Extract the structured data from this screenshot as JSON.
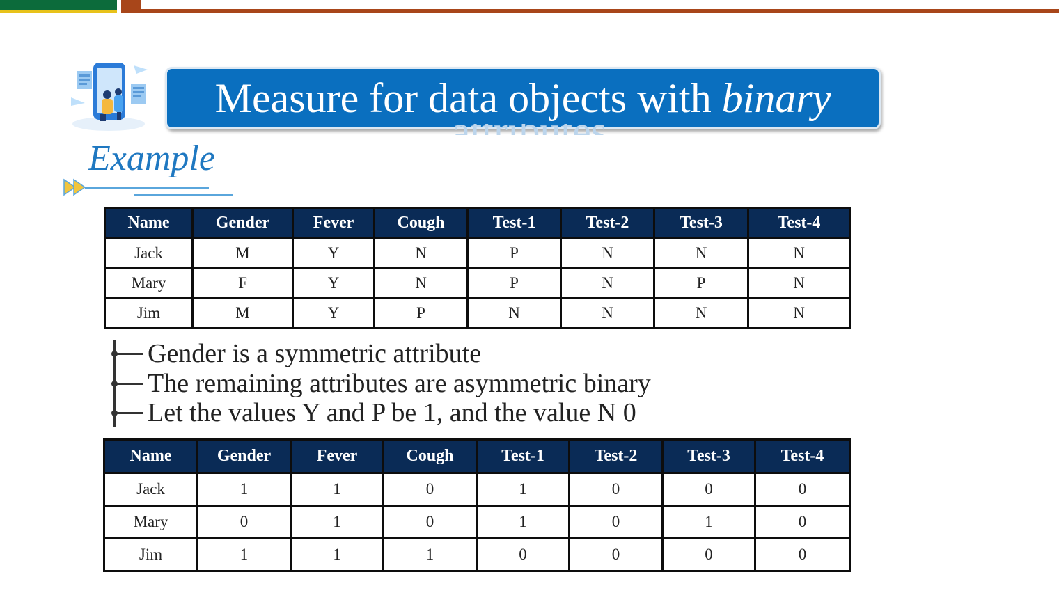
{
  "title": {
    "text_plain": "Measure for data objects with ",
    "text_italic": "binary",
    "overflow_text": "attributes"
  },
  "section": {
    "heading": "Example"
  },
  "colors": {
    "banner": "#0a6fbf",
    "header_bg": "#0a2b56",
    "accent": "#1f78c1",
    "topbar_green": "#0c6b3b",
    "topbar_brown": "#a8461a"
  },
  "table_raw": {
    "headers": [
      "Name",
      "Gender",
      "Fever",
      "Cough",
      "Test-1",
      "Test-2",
      "Test-3",
      "Test-4"
    ],
    "rows": [
      [
        "Jack",
        "M",
        "Y",
        "N",
        "P",
        "N",
        "N",
        "N"
      ],
      [
        "Mary",
        "F",
        "Y",
        "N",
        "P",
        "N",
        "P",
        "N"
      ],
      [
        "Jim",
        "M",
        "Y",
        "P",
        "N",
        "N",
        "N",
        "N"
      ]
    ]
  },
  "notes": [
    "Gender is a symmetric attribute",
    "The remaining attributes are asymmetric binary",
    "Let the values Y and P be 1, and the value N 0"
  ],
  "table_binary": {
    "headers": [
      "Name",
      "Gender",
      "Fever",
      "Cough",
      "Test-1",
      "Test-2",
      "Test-3",
      "Test-4"
    ],
    "rows": [
      [
        "Jack",
        "1",
        "1",
        "0",
        "1",
        "0",
        "0",
        "0"
      ],
      [
        "Mary",
        "0",
        "1",
        "0",
        "1",
        "0",
        "1",
        "0"
      ],
      [
        "Jim",
        "1",
        "1",
        "1",
        "0",
        "0",
        "0",
        "0"
      ]
    ]
  }
}
